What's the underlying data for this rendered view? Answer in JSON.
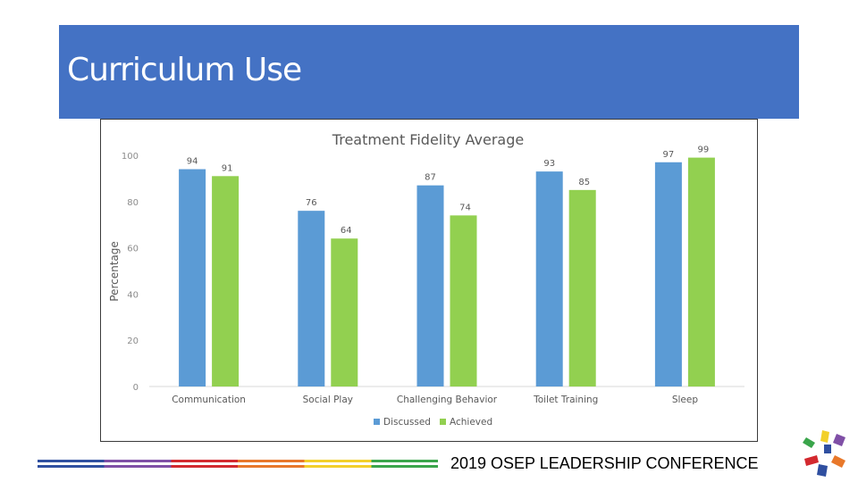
{
  "slide": {
    "title": "Curriculum Use"
  },
  "footer": {
    "conference": "2019 OSEP LEADERSHIP CONFERENCE"
  },
  "colors": {
    "banner": "#4472c4",
    "discussed": "#5b9bd5",
    "achieved": "#92d050",
    "stripe_colors": [
      "#2f4fa0",
      "#7f4fa6",
      "#d3292f",
      "#e8782a",
      "#f2d02a",
      "#3aa54b"
    ]
  },
  "logo": {
    "icon": "colorful-hands-logo"
  },
  "chart_data": {
    "type": "bar",
    "title": "Treatment Fidelity Average",
    "xlabel": "",
    "ylabel": "Percentage",
    "ylim": [
      0,
      100
    ],
    "yticks": [
      "0",
      "20",
      "40",
      "60",
      "80",
      "100"
    ],
    "categories": [
      "Communication",
      "Social Play",
      "Challenging Behavior",
      "Toilet Training",
      "Sleep"
    ],
    "series": [
      {
        "name": "Discussed",
        "values": [
          94,
          76,
          87,
          93,
          97
        ],
        "labels": [
          "94",
          "76",
          "87",
          "93",
          "97"
        ]
      },
      {
        "name": "Achieved",
        "values": [
          91,
          64,
          74,
          85,
          99
        ],
        "labels": [
          "91",
          "64",
          "74",
          "85",
          "99"
        ]
      }
    ],
    "legend": "bottom",
    "grid": false
  }
}
